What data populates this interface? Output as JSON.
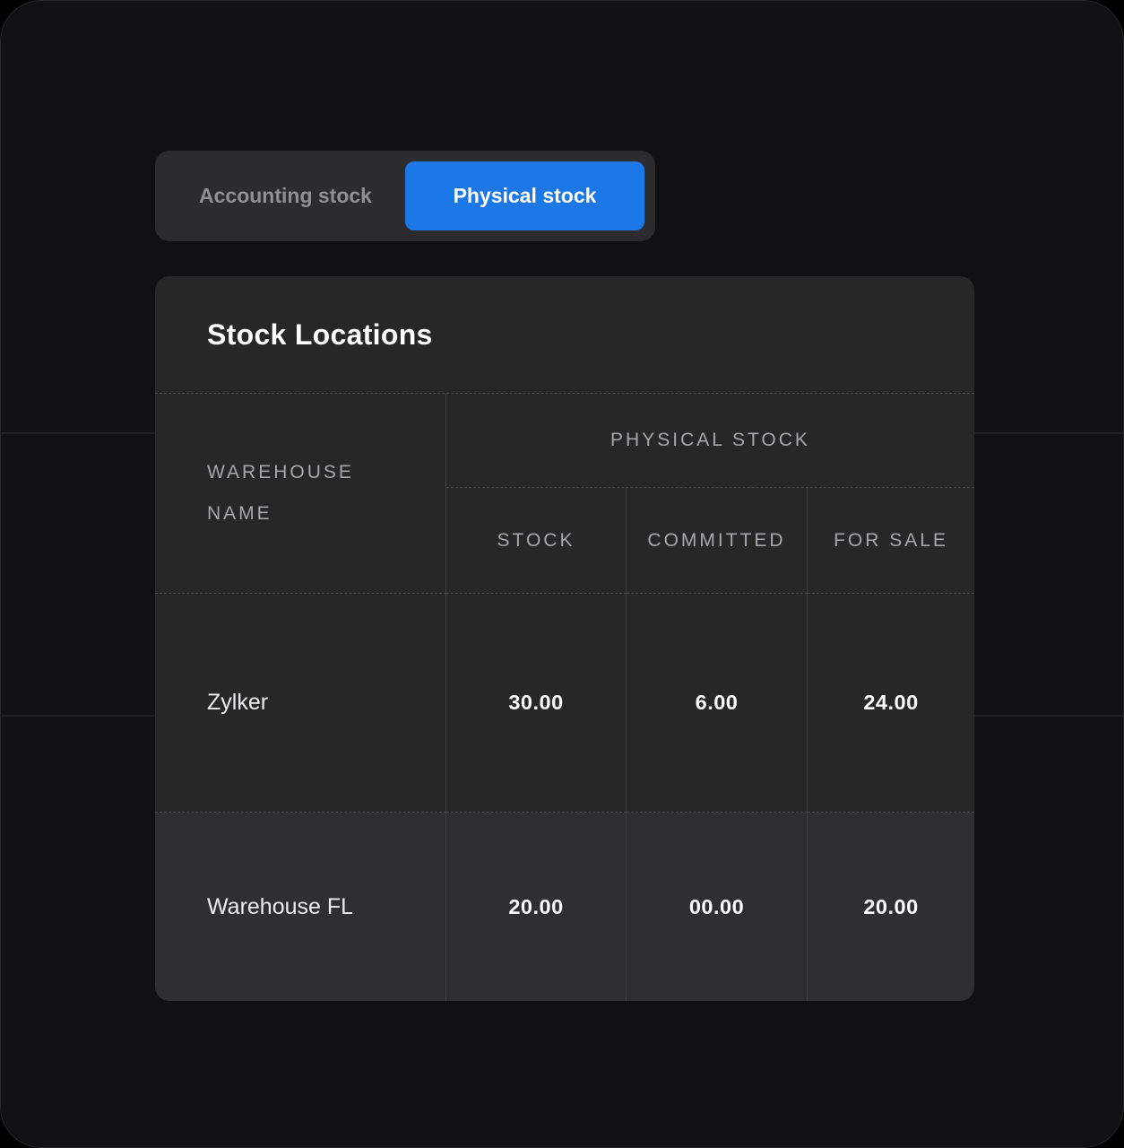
{
  "toggle": {
    "accounting_label": "Accounting stock",
    "physical_label": "Physical stock",
    "selected": "Physical stock"
  },
  "stock_locations": {
    "title": "Stock Locations",
    "table": {
      "warehouse_column_header": "WAREHOUSE NAME",
      "group_header": "PHYSICAL STOCK",
      "sub_columns": [
        "STOCK",
        "COMMITTED",
        "FOR SALE"
      ],
      "rows": [
        {
          "warehouse_name": "Zylker",
          "stock": "30.00",
          "committed": "6.00",
          "for_sale": "24.00"
        },
        {
          "warehouse_name": "Warehouse FL",
          "stock": "20.00",
          "committed": "00.00",
          "for_sale": "20.00"
        }
      ]
    }
  },
  "colors": {
    "accent_blue": "#1b78e6",
    "page_background": "#111113",
    "card_background": "#272728",
    "row_alt_background": "#2f2f31"
  }
}
